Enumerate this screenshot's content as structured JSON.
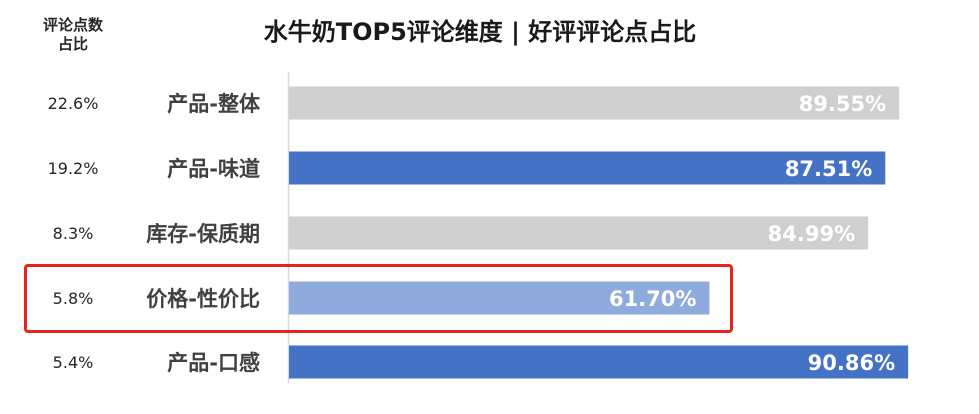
{
  "header": {
    "share_column_label": "评论点数\n占比"
  },
  "chart_data": {
    "type": "bar",
    "orientation": "horizontal",
    "title": "水牛奶TOP5评论维度 | 好评评论点占比",
    "categories": [
      "产品-整体",
      "产品-味道",
      "库存-保质期",
      "价格-性价比",
      "产品-口感"
    ],
    "share_labels": [
      "22.6%",
      "19.2%",
      "8.3%",
      "5.8%",
      "5.4%"
    ],
    "values": [
      89.55,
      87.51,
      84.99,
      61.7,
      90.86
    ],
    "value_labels": [
      "89.55%",
      "87.51%",
      "84.99%",
      "61.70%",
      "90.86%"
    ],
    "bar_colors": [
      "#d0cfcf",
      "#4472c4",
      "#d0cfcf",
      "#8faadc",
      "#4472c4"
    ],
    "highlighted_category": "价格-性价比",
    "xlim": [
      0,
      100
    ],
    "grid": false,
    "legend": "none"
  },
  "colors": {
    "highlight_border": "#e8231c",
    "axis_line": "#d9d9d9"
  }
}
